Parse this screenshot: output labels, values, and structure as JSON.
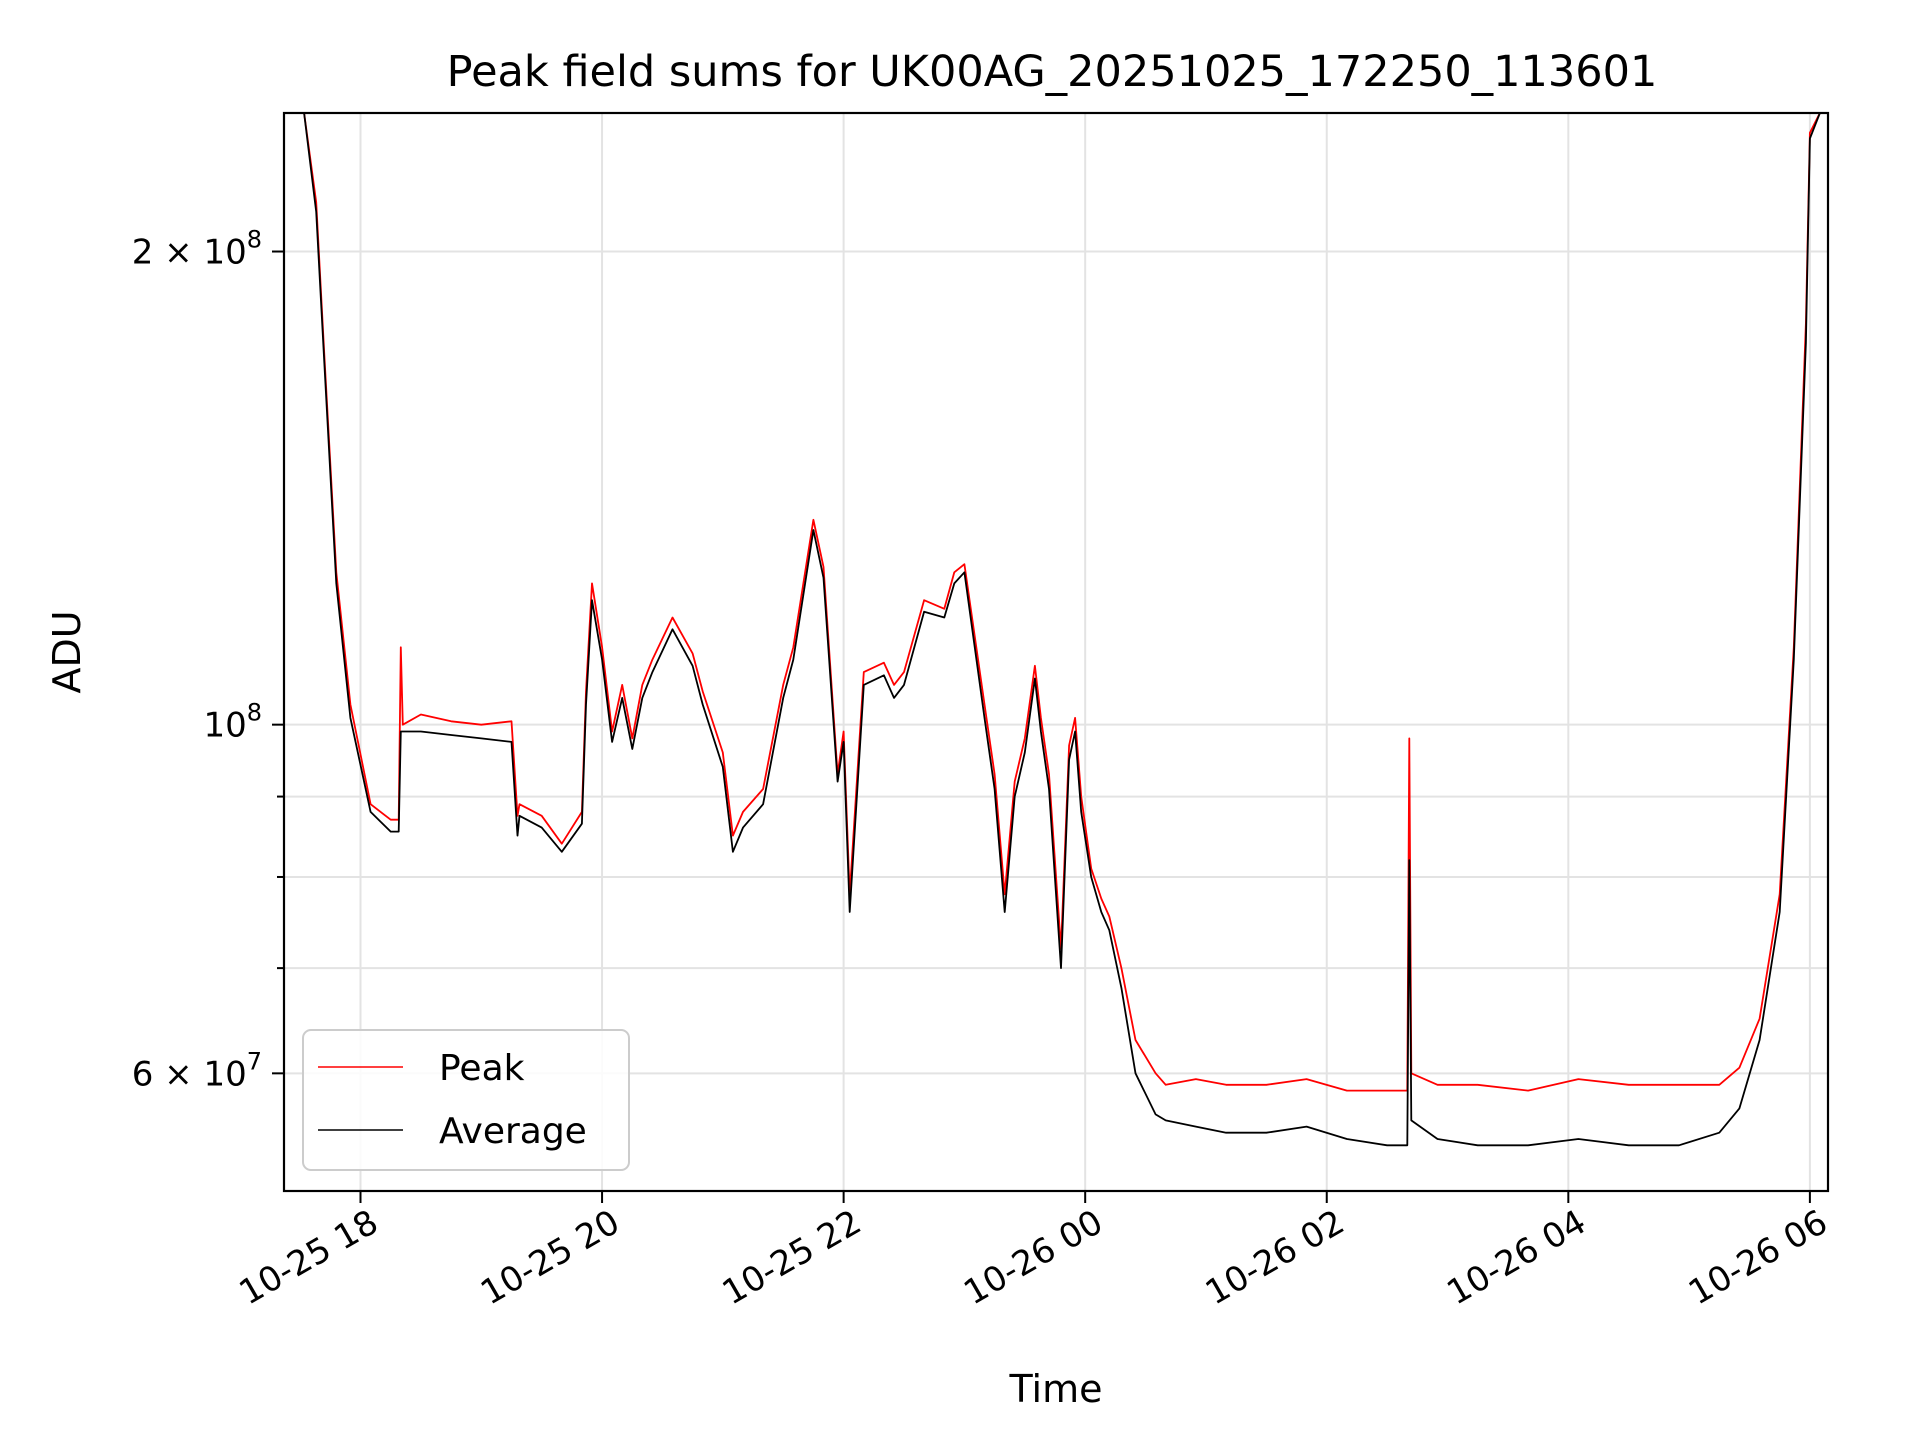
{
  "chart_data": {
    "type": "line",
    "title": "Peak field sums for UK00AG_20251025_172250_113601",
    "xlabel": "Time",
    "ylabel": "ADU",
    "yscale": "log",
    "ylim": [
      50500000,
      245000000
    ],
    "xlim": [
      "2025-10-25 17:22",
      "2025-10-26 06:09"
    ],
    "grid": true,
    "legend_position": "lower-left",
    "x_ticks": [
      {
        "t": "2025-10-25 18:00",
        "label": "10-25 18"
      },
      {
        "t": "2025-10-25 20:00",
        "label": "10-25 20"
      },
      {
        "t": "2025-10-25 22:00",
        "label": "10-25 22"
      },
      {
        "t": "2025-10-26 00:00",
        "label": "10-26 00"
      },
      {
        "t": "2025-10-26 02:00",
        "label": "10-26 02"
      },
      {
        "t": "2025-10-26 04:00",
        "label": "10-26 04"
      },
      {
        "t": "2025-10-26 06:00",
        "label": "10-26 06"
      }
    ],
    "y_ticks_major": [
      {
        "value": 60000000,
        "mantissa": "6",
        "times": "×",
        "base": "10",
        "exp": "7"
      },
      {
        "value": 100000000,
        "mantissa": "",
        "times": "",
        "base": "10",
        "exp": "8"
      },
      {
        "value": 200000000,
        "mantissa": "2",
        "times": "×",
        "base": "10",
        "exp": "8"
      }
    ],
    "y_ticks_minor": [
      70000000,
      80000000,
      90000000
    ],
    "series": [
      {
        "name": "Peak",
        "color": "#ff0000",
        "x": [
          "2025-10-25 17:22",
          "2025-10-25 17:32",
          "2025-10-25 17:38",
          "2025-10-25 17:42",
          "2025-10-25 17:48",
          "2025-10-25 17:55",
          "2025-10-25 18:05",
          "2025-10-25 18:15",
          "2025-10-25 18:19",
          "2025-10-25 18:20",
          "2025-10-25 18:21",
          "2025-10-25 18:30",
          "2025-10-25 18:45",
          "2025-10-25 19:00",
          "2025-10-25 19:15",
          "2025-10-25 19:18",
          "2025-10-25 19:19",
          "2025-10-25 19:30",
          "2025-10-25 19:40",
          "2025-10-25 19:50",
          "2025-10-25 19:52",
          "2025-10-25 19:55",
          "2025-10-25 20:00",
          "2025-10-25 20:05",
          "2025-10-25 20:10",
          "2025-10-25 20:15",
          "2025-10-25 20:20",
          "2025-10-25 20:25",
          "2025-10-25 20:35",
          "2025-10-25 20:45",
          "2025-10-25 20:50",
          "2025-10-25 21:00",
          "2025-10-25 21:05",
          "2025-10-25 21:10",
          "2025-10-25 21:20",
          "2025-10-25 21:30",
          "2025-10-25 21:35",
          "2025-10-25 21:45",
          "2025-10-25 21:50",
          "2025-10-25 21:57",
          "2025-10-25 22:00",
          "2025-10-25 22:03",
          "2025-10-25 22:10",
          "2025-10-25 22:20",
          "2025-10-25 22:25",
          "2025-10-25 22:30",
          "2025-10-25 22:40",
          "2025-10-25 22:50",
          "2025-10-25 22:55",
          "2025-10-25 23:00",
          "2025-10-25 23:10",
          "2025-10-25 23:15",
          "2025-10-25 23:20",
          "2025-10-25 23:25",
          "2025-10-25 23:30",
          "2025-10-25 23:35",
          "2025-10-25 23:38",
          "2025-10-25 23:42",
          "2025-10-25 23:48",
          "2025-10-25 23:52",
          "2025-10-25 23:55",
          "2025-10-25 23:58",
          "2025-10-26 00:03",
          "2025-10-26 00:08",
          "2025-10-26 00:12",
          "2025-10-26 00:18",
          "2025-10-26 00:25",
          "2025-10-26 00:35",
          "2025-10-26 00:40",
          "2025-10-26 00:55",
          "2025-10-26 01:10",
          "2025-10-26 01:30",
          "2025-10-26 01:50",
          "2025-10-26 02:10",
          "2025-10-26 02:30",
          "2025-10-26 02:40",
          "2025-10-26 02:41",
          "2025-10-26 02:42",
          "2025-10-26 02:55",
          "2025-10-26 03:15",
          "2025-10-26 03:40",
          "2025-10-26 04:05",
          "2025-10-26 04:30",
          "2025-10-26 04:55",
          "2025-10-26 05:15",
          "2025-10-26 05:25",
          "2025-10-26 05:35",
          "2025-10-26 05:45",
          "2025-10-26 05:52",
          "2025-10-26 05:58",
          "2025-10-26 06:00",
          "2025-10-26 06:05",
          "2025-10-26 06:09"
        ],
        "y": [
          245000000,
          245000000,
          215000000,
          172000000,
          125000000,
          103000000,
          89000000,
          87000000,
          87000000,
          112000000,
          100000000,
          101500000,
          100500000,
          100000000,
          100500000,
          87500000,
          89000000,
          87500000,
          84000000,
          88000000,
          105000000,
          123000000,
          112000000,
          99000000,
          106000000,
          98000000,
          106000000,
          110000000,
          117000000,
          111000000,
          105000000,
          96000000,
          85000000,
          88000000,
          91000000,
          106000000,
          112000000,
          135000000,
          126000000,
          93000000,
          99000000,
          78000000,
          108000000,
          109500000,
          106000000,
          108000000,
          120000000,
          118500000,
          125000000,
          126500000,
          103000000,
          93000000,
          78000000,
          92000000,
          98000000,
          109000000,
          101000000,
          93000000,
          72000000,
          97000000,
          101000000,
          90000000,
          81000000,
          77500000,
          75500000,
          70000000,
          63000000,
          60000000,
          59000000,
          59500000,
          59000000,
          59000000,
          59500000,
          58500000,
          58500000,
          58500000,
          98000000,
          60000000,
          59000000,
          59000000,
          58500000,
          59500000,
          59000000,
          59000000,
          59000000,
          60500000,
          65000000,
          78000000,
          112000000,
          180000000,
          238000000,
          245000000,
          245000000
        ]
      },
      {
        "name": "Average",
        "color": "#000000",
        "x": [
          "2025-10-25 17:22",
          "2025-10-25 17:32",
          "2025-10-25 17:38",
          "2025-10-25 17:42",
          "2025-10-25 17:48",
          "2025-10-25 17:55",
          "2025-10-25 18:05",
          "2025-10-25 18:15",
          "2025-10-25 18:19",
          "2025-10-25 18:20",
          "2025-10-25 18:21",
          "2025-10-25 18:30",
          "2025-10-25 18:45",
          "2025-10-25 19:00",
          "2025-10-25 19:15",
          "2025-10-25 19:18",
          "2025-10-25 19:19",
          "2025-10-25 19:30",
          "2025-10-25 19:40",
          "2025-10-25 19:50",
          "2025-10-25 19:52",
          "2025-10-25 19:55",
          "2025-10-25 20:00",
          "2025-10-25 20:05",
          "2025-10-25 20:10",
          "2025-10-25 20:15",
          "2025-10-25 20:20",
          "2025-10-25 20:25",
          "2025-10-25 20:35",
          "2025-10-25 20:45",
          "2025-10-25 20:50",
          "2025-10-25 21:00",
          "2025-10-25 21:05",
          "2025-10-25 21:10",
          "2025-10-25 21:20",
          "2025-10-25 21:30",
          "2025-10-25 21:35",
          "2025-10-25 21:45",
          "2025-10-25 21:50",
          "2025-10-25 21:57",
          "2025-10-25 22:00",
          "2025-10-25 22:03",
          "2025-10-25 22:10",
          "2025-10-25 22:20",
          "2025-10-25 22:25",
          "2025-10-25 22:30",
          "2025-10-25 22:40",
          "2025-10-25 22:50",
          "2025-10-25 22:55",
          "2025-10-25 23:00",
          "2025-10-25 23:10",
          "2025-10-25 23:15",
          "2025-10-25 23:20",
          "2025-10-25 23:25",
          "2025-10-25 23:30",
          "2025-10-25 23:35",
          "2025-10-25 23:38",
          "2025-10-25 23:42",
          "2025-10-25 23:48",
          "2025-10-25 23:52",
          "2025-10-25 23:55",
          "2025-10-25 23:58",
          "2025-10-26 00:03",
          "2025-10-26 00:08",
          "2025-10-26 00:12",
          "2025-10-26 00:18",
          "2025-10-26 00:25",
          "2025-10-26 00:35",
          "2025-10-26 00:40",
          "2025-10-26 00:55",
          "2025-10-26 01:10",
          "2025-10-26 01:30",
          "2025-10-26 01:50",
          "2025-10-26 02:10",
          "2025-10-26 02:30",
          "2025-10-26 02:40",
          "2025-10-26 02:41",
          "2025-10-26 02:42",
          "2025-10-26 02:55",
          "2025-10-26 03:15",
          "2025-10-26 03:40",
          "2025-10-26 04:05",
          "2025-10-26 04:30",
          "2025-10-26 04:55",
          "2025-10-26 05:15",
          "2025-10-26 05:25",
          "2025-10-26 05:35",
          "2025-10-26 05:45",
          "2025-10-26 05:52",
          "2025-10-26 05:58",
          "2025-10-26 06:00",
          "2025-10-26 06:05",
          "2025-10-26 06:09"
        ],
        "y": [
          245000000,
          245000000,
          212000000,
          170000000,
          123000000,
          101000000,
          88000000,
          85500000,
          85500000,
          99000000,
          99000000,
          99000000,
          98500000,
          98000000,
          97500000,
          85000000,
          87500000,
          86000000,
          83000000,
          86500000,
          103000000,
          120000000,
          110000000,
          97500000,
          104000000,
          96500000,
          104000000,
          108000000,
          115000000,
          109000000,
          103000000,
          94000000,
          83000000,
          86000000,
          89000000,
          104000000,
          110000000,
          133000000,
          124000000,
          92000000,
          97500000,
          76000000,
          106000000,
          107500000,
          104000000,
          106000000,
          118000000,
          117000000,
          123000000,
          125000000,
          101000000,
          91000000,
          76000000,
          90000000,
          96000000,
          107000000,
          99000000,
          91000000,
          70000000,
          95000000,
          99000000,
          88000000,
          80000000,
          76000000,
          74000000,
          68000000,
          60000000,
          56500000,
          56000000,
          55500000,
          55000000,
          55000000,
          55500000,
          54500000,
          54000000,
          54000000,
          82000000,
          56000000,
          54500000,
          54000000,
          54000000,
          54500000,
          54000000,
          54000000,
          55000000,
          57000000,
          63000000,
          76000000,
          110000000,
          175000000,
          236000000,
          245000000,
          245000000
        ]
      }
    ]
  }
}
